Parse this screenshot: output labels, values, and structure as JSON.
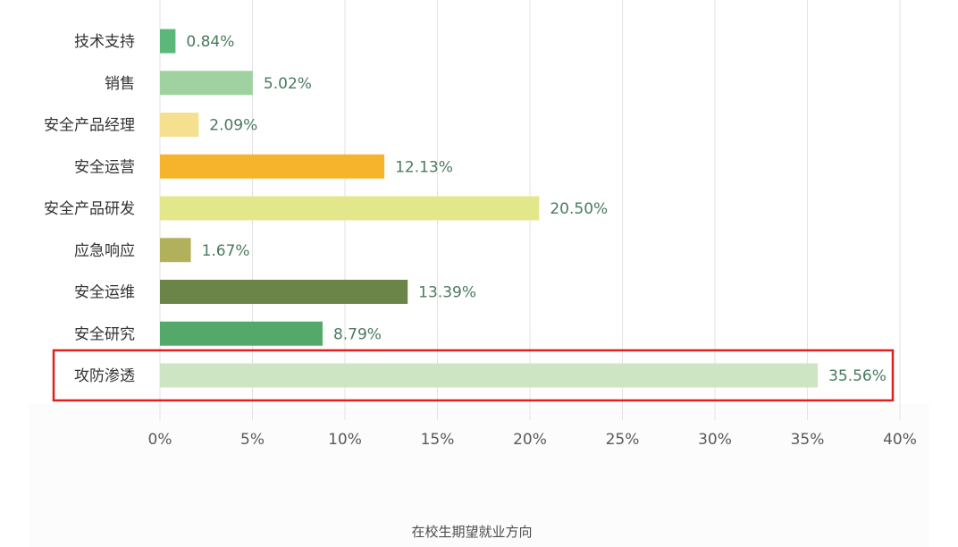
{
  "chart_data": {
    "type": "bar",
    "orientation": "horizontal",
    "title": "",
    "xlabel": "在校生期望就业方向",
    "ylabel": "",
    "xlim": [
      0,
      40
    ],
    "x_ticks": [
      "0%",
      "5%",
      "10%",
      "15%",
      "20%",
      "25%",
      "30%",
      "35%",
      "40%"
    ],
    "grid": "vertical",
    "categories": [
      "技术支持",
      "销售",
      "安全产品经理",
      "安全运营",
      "安全产品研发",
      "应急响应",
      "安全运维",
      "安全研究",
      "攻防渗透"
    ],
    "values": [
      0.84,
      5.02,
      2.09,
      12.13,
      20.5,
      1.67,
      13.39,
      8.79,
      35.56
    ],
    "value_labels": [
      "0.84%",
      "5.02%",
      "2.09%",
      "12.13%",
      "20.50%",
      "1.67%",
      "13.39%",
      "8.79%",
      "35.56%"
    ],
    "colors": [
      "#5bb87a",
      "#9fd2a0",
      "#f4e08f",
      "#f6b42c",
      "#e3e78c",
      "#b1b15c",
      "#6b8448",
      "#54a96a",
      "#cde5c3"
    ],
    "highlight": {
      "category": "攻防渗透",
      "color": "#e02020"
    }
  }
}
